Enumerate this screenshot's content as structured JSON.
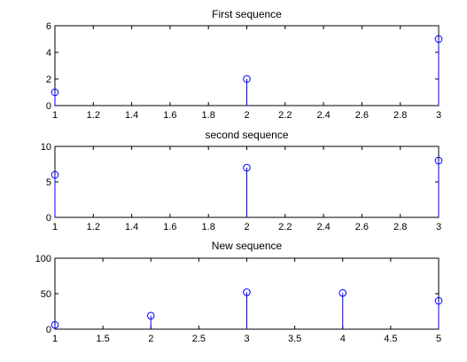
{
  "chart_data": [
    {
      "type": "stem",
      "title": "First sequence",
      "x": [
        1,
        2,
        3
      ],
      "y": [
        1,
        2,
        5
      ],
      "xlim": [
        1,
        3
      ],
      "ylim": [
        0,
        6
      ],
      "xticks": [
        1,
        1.2,
        1.4,
        1.6,
        1.8,
        2,
        2.2,
        2.4,
        2.6,
        2.8,
        3
      ],
      "xtick_labels": [
        "1",
        "1.2",
        "1.4",
        "1.6",
        "1.8",
        "2",
        "2.2",
        "2.4",
        "2.6",
        "2.8",
        "3"
      ],
      "yticks": [
        0,
        2,
        4,
        6
      ],
      "ytick_labels": [
        "0",
        "2",
        "4",
        "6"
      ],
      "grid": false,
      "color": "#0000ff"
    },
    {
      "type": "stem",
      "title": "second sequence",
      "x": [
        1,
        2,
        3
      ],
      "y": [
        6,
        7,
        8
      ],
      "xlim": [
        1,
        3
      ],
      "ylim": [
        0,
        10
      ],
      "xticks": [
        1,
        1.2,
        1.4,
        1.6,
        1.8,
        2,
        2.2,
        2.4,
        2.6,
        2.8,
        3
      ],
      "xtick_labels": [
        "1",
        "1.2",
        "1.4",
        "1.6",
        "1.8",
        "2",
        "2.2",
        "2.4",
        "2.6",
        "2.8",
        "3"
      ],
      "yticks": [
        0,
        5,
        10
      ],
      "ytick_labels": [
        "0",
        "5",
        "10"
      ],
      "grid": false,
      "color": "#0000ff"
    },
    {
      "type": "stem",
      "title": "New sequence",
      "x": [
        1,
        2,
        3,
        4,
        5
      ],
      "y": [
        6,
        19,
        52,
        51,
        40
      ],
      "xlim": [
        1,
        5
      ],
      "ylim": [
        0,
        100
      ],
      "xticks": [
        1,
        1.5,
        2,
        2.5,
        3,
        3.5,
        4,
        4.5,
        5
      ],
      "xtick_labels": [
        "1",
        "1.5",
        "2",
        "2.5",
        "3",
        "3.5",
        "4",
        "4.5",
        "5"
      ],
      "yticks": [
        0,
        50,
        100
      ],
      "ytick_labels": [
        "0",
        "50",
        "100"
      ],
      "grid": false,
      "color": "#0000ff"
    }
  ]
}
